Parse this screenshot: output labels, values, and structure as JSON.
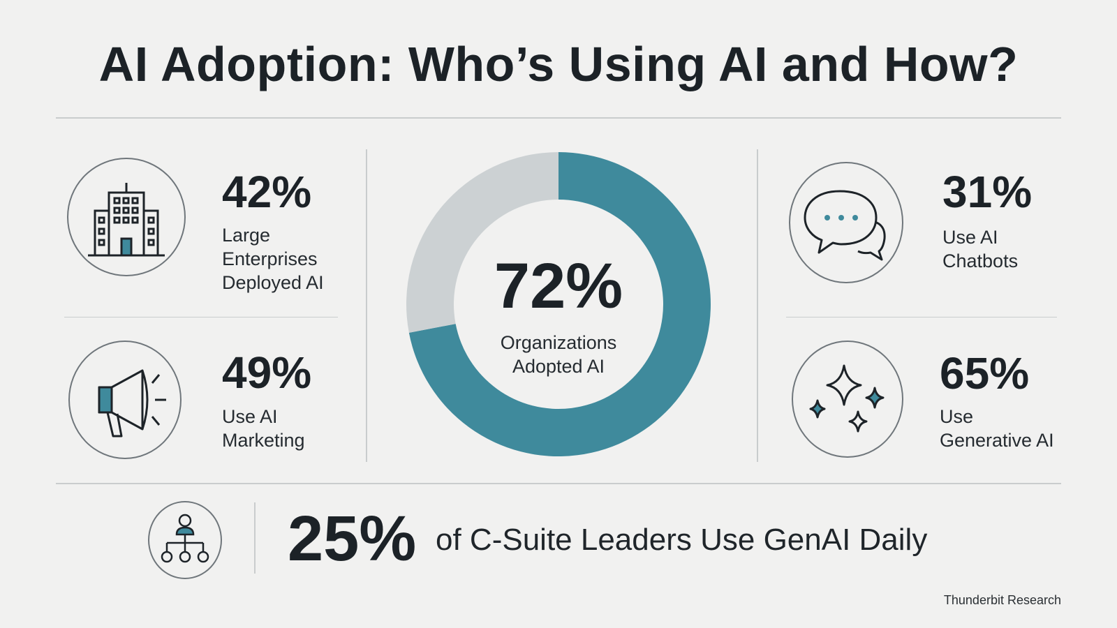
{
  "title": "AI Adoption: Who’s Using AI and How?",
  "colors": {
    "accent": "#3f8a9c",
    "track": "#ccd1d3",
    "ink": "#1c2227"
  },
  "chart_data": {
    "type": "pie",
    "variant": "donut",
    "slices": [
      {
        "label": "Organizations Adopted AI",
        "value": 72,
        "color": "#3f8a9c"
      },
      {
        "label": "",
        "value": 28,
        "color": "#ccd1d3"
      }
    ],
    "center_value": "72%",
    "center_label": [
      "Organizations",
      "Adopted AI"
    ]
  },
  "stats": [
    {
      "id": "enterprises",
      "value": "42%",
      "label": [
        "Large",
        "Enterprises",
        "Deployed AI"
      ],
      "icon": "building-icon"
    },
    {
      "id": "marketing",
      "value": "49%",
      "label": [
        "Use AI",
        "Marketing"
      ],
      "icon": "megaphone-icon"
    },
    {
      "id": "chatbots",
      "value": "31%",
      "label": [
        "Use AI",
        "Chatbots"
      ],
      "icon": "chat-bubbles-icon"
    },
    {
      "id": "generative",
      "value": "65%",
      "label": [
        "Use",
        "Generative AI"
      ],
      "icon": "sparkles-icon"
    }
  ],
  "bottom": {
    "value": "25%",
    "label": "of C-Suite Leaders Use GenAI Daily",
    "icon": "org-chart-icon"
  },
  "source": "Thunderbit Research"
}
